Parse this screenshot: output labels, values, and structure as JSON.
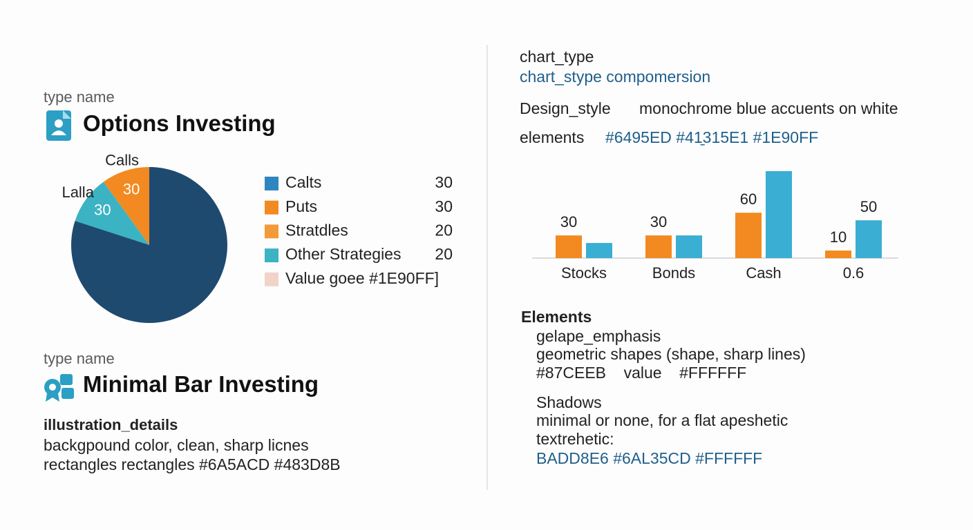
{
  "left": {
    "section1": {
      "kicker": "type name",
      "title": "Options Investing"
    },
    "section2": {
      "kicker": "type name",
      "title": "Minimal Bar Investing"
    },
    "illustration": {
      "heading": "illustration_details",
      "lines": [
        "backgpound color, clean, sharp licnes",
        "rectangles rectangles #6A5ACD #483D8B"
      ]
    },
    "legend": [
      {
        "label": "Calts",
        "color": "#2e86c1",
        "value": 30
      },
      {
        "label": "Puts",
        "color": "#f28a21",
        "value": 30
      },
      {
        "label": "Stratdles",
        "color": "#f39b3a",
        "value": 20
      },
      {
        "label": "Other Strategies",
        "color": "#3bb3c3",
        "value": 20
      },
      {
        "label": "Value goee #1E90FF]",
        "color": "#f1d3c9"
      }
    ]
  },
  "right": {
    "spec": {
      "chart_type_label": "chart_type",
      "chart_type_value": "chart_stype compomersion",
      "design_label": "Design_style",
      "design_value": "monochrome blue accuents on white",
      "elements_label": "elements",
      "elements_value": "#6495ED #41̱315E1 #1E90FF"
    },
    "elements": {
      "heading": "Elements",
      "sub": "gelape_emphasis",
      "lines": [
        "geometric shapes (shape, sharp lines)",
        "#87CEEB    value    #FFFFFF"
      ],
      "shadows_heading": "Shadows",
      "shadows_lines": [
        "minimal or none, for a flat apeshetic",
        "textrehetic:"
      ],
      "colors_line": "BADD8E6 #6AL35CD #FFFFFF"
    }
  },
  "chart_data": [
    {
      "type": "pie",
      "categories": [
        "Calls",
        "Lalla",
        null
      ],
      "values": [
        30,
        30,
        240
      ],
      "value_labels": [
        "30",
        "30",
        null
      ],
      "colors": [
        "#f28a21",
        "#3bb3c3",
        "#1f4a70"
      ]
    },
    {
      "type": "bar",
      "categories": [
        "Stocks",
        "Bonds",
        "Cash",
        "0.6"
      ],
      "series": [
        {
          "color": "#f28a21",
          "values": [
            30,
            30,
            60,
            10
          ]
        },
        {
          "color": "#3aaed3",
          "values": [
            20,
            30,
            115,
            50
          ],
          "value_labels": [
            null,
            null,
            null,
            "50"
          ]
        }
      ]
    }
  ]
}
